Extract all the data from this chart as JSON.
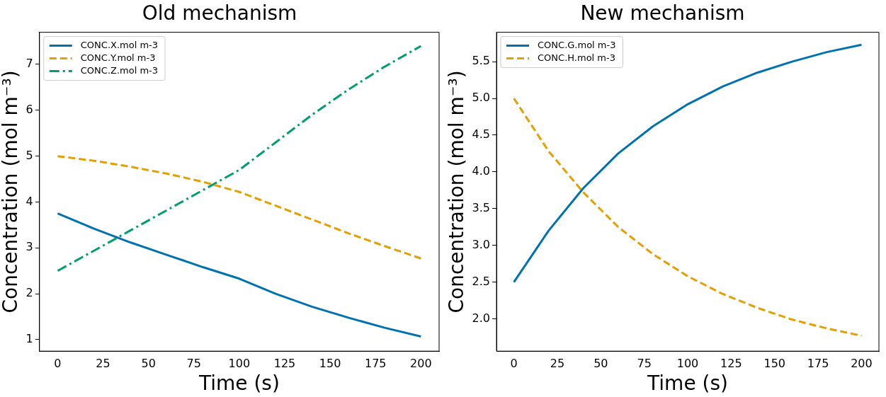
{
  "chart_data": [
    {
      "type": "line",
      "title": "Old mechanism",
      "xlabel": "Time (s)",
      "ylabel": "Concentration (mol m⁻³)",
      "x": [
        0,
        20,
        40,
        60,
        80,
        100,
        120,
        140,
        160,
        180,
        200
      ],
      "series": [
        {
          "name": "CONC.X.mol m-3",
          "color": "#0072b2",
          "line_style": "solid",
          "values": [
            3.75,
            3.42,
            3.12,
            2.85,
            2.58,
            2.33,
            2.0,
            1.72,
            1.48,
            1.26,
            1.07
          ]
        },
        {
          "name": "CONC.Y.mol m-3",
          "color": "#e69f00",
          "line_style": "dashed",
          "values": [
            5.0,
            4.9,
            4.77,
            4.62,
            4.44,
            4.22,
            3.92,
            3.62,
            3.32,
            3.04,
            2.77
          ]
        },
        {
          "name": "CONC.Z.mol m-3",
          "color": "#009e73",
          "line_style": "dashdot",
          "values": [
            2.5,
            2.94,
            3.38,
            3.82,
            4.26,
            4.7,
            5.3,
            5.9,
            6.45,
            6.95,
            7.4
          ]
        }
      ],
      "xlim": [
        -10,
        210
      ],
      "xticks": [
        0,
        25,
        50,
        75,
        100,
        125,
        150,
        175,
        200
      ],
      "ylim": [
        0.75,
        7.7
      ],
      "yticks": [
        1,
        2,
        3,
        4,
        5,
        6,
        7
      ],
      "legend": "top left",
      "grid": false
    },
    {
      "type": "line",
      "title": "New mechanism",
      "xlabel": "Time (s)",
      "ylabel": "Concentration (mol m⁻³)",
      "x": [
        0,
        20,
        40,
        60,
        80,
        100,
        120,
        140,
        160,
        180,
        200
      ],
      "series": [
        {
          "name": "CONC.G.mol m-3",
          "color": "#0072b2",
          "line_style": "solid",
          "values": [
            2.5,
            3.2,
            3.78,
            4.25,
            4.62,
            4.92,
            5.16,
            5.35,
            5.5,
            5.63,
            5.73
          ]
        },
        {
          "name": "CONC.H.mol m-3",
          "color": "#e69f00",
          "line_style": "dashed",
          "values": [
            5.0,
            4.28,
            3.72,
            3.25,
            2.88,
            2.58,
            2.34,
            2.15,
            1.99,
            1.87,
            1.77
          ]
        }
      ],
      "xlim": [
        -10,
        210
      ],
      "xticks": [
        0,
        25,
        50,
        75,
        100,
        125,
        150,
        175,
        200
      ],
      "ylim": [
        1.56,
        5.9
      ],
      "yticks": [
        {
          "value": 2,
          "label": "2.0"
        },
        {
          "value": 2.5,
          "label": "2.5"
        },
        {
          "value": 3,
          "label": "3.0"
        },
        {
          "value": 3.5,
          "label": "3.5"
        },
        {
          "value": 4,
          "label": "4.0"
        },
        {
          "value": 4.5,
          "label": "4.5"
        },
        {
          "value": 5,
          "label": "5.0"
        },
        {
          "value": 5.5,
          "label": "5.5"
        }
      ],
      "legend": "top left",
      "grid": false
    }
  ]
}
